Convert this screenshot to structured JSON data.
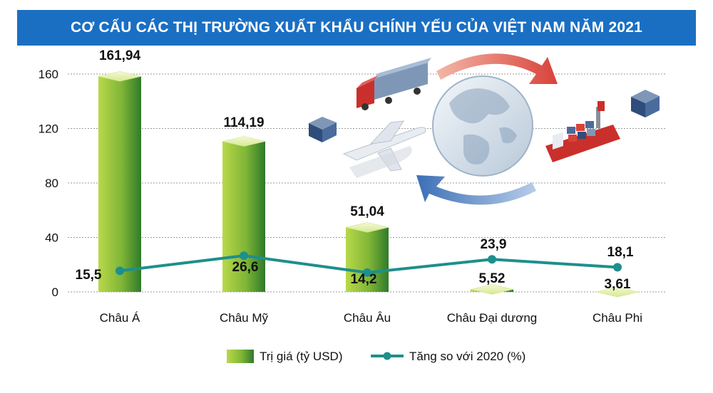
{
  "chart_data": {
    "type": "bar",
    "title": "CƠ CẤU CÁC THỊ TRƯỜNG XUẤT KHẨU CHÍNH YẾU CỦA VIỆT NAM NĂM 2021",
    "categories": [
      "Châu Á",
      "Châu Mỹ",
      "Châu Âu",
      "Châu Đại dương",
      "Châu Phi"
    ],
    "series": [
      {
        "name": "Trị giá (tỷ USD)",
        "type": "bar",
        "values": [
          161.94,
          114.19,
          51.04,
          5.52,
          3.61
        ],
        "labels": [
          "161,94",
          "114,19",
          "51,04",
          "5,52",
          "3,61"
        ],
        "color": "#6aa82e"
      },
      {
        "name": "Tăng so với 2020 (%)",
        "type": "line",
        "values": [
          15.5,
          26.6,
          14.2,
          23.9,
          18.1
        ],
        "labels": [
          "15,5",
          "26,6",
          "14,2",
          "23,9",
          "18,1"
        ],
        "color": "#1e8f8c"
      }
    ],
    "y_ticks": [
      "0",
      "40",
      "80",
      "120",
      "160"
    ],
    "ylim": [
      0,
      160
    ],
    "grid": true,
    "legend_position": "bottom"
  }
}
